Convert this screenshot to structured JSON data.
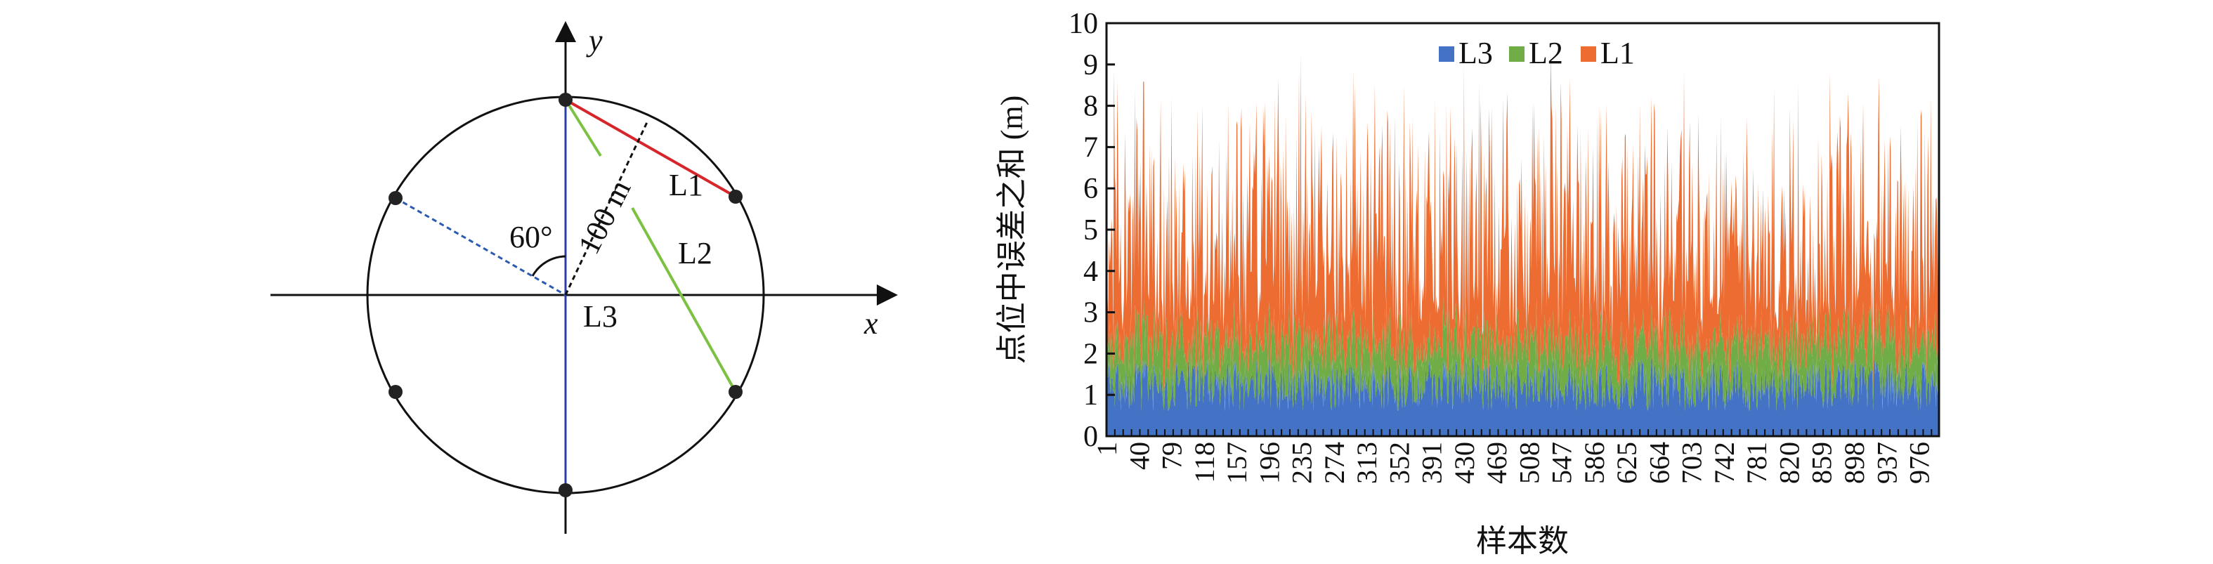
{
  "diagram": {
    "y_axis_label": "y",
    "x_axis_label": "x",
    "angle_label": "60°",
    "radius_label": "100 m",
    "line_labels": [
      "L1",
      "L2",
      "L3"
    ],
    "colors": {
      "L1": "#d6262b",
      "L2": "#7cc242",
      "L3": "#2a3fa8",
      "circle": "#111111",
      "dashed": "#2a5bb0"
    }
  },
  "chart_data": {
    "type": "area",
    "stacked": true,
    "xlabel": "样本数",
    "ylabel": "点位中误差之和 (m)",
    "ylim": [
      0,
      10
    ],
    "yticks": [
      "0",
      "1",
      "2",
      "3",
      "4",
      "5",
      "6",
      "7",
      "8",
      "9",
      "10"
    ],
    "xlim": [
      1,
      1000
    ],
    "xticks": [
      "1",
      "40",
      "79",
      "118",
      "157",
      "196",
      "235",
      "274",
      "313",
      "352",
      "391",
      "430",
      "469",
      "508",
      "547",
      "586",
      "625",
      "664",
      "703",
      "742",
      "781",
      "820",
      "859",
      "898",
      "937",
      "976"
    ],
    "legend_position": "top-center",
    "series": [
      {
        "name": "L3",
        "color": "#4472c4",
        "typical_range": [
          0.6,
          1.9
        ]
      },
      {
        "name": "L2",
        "color": "#70ad47",
        "typical_range": [
          0.4,
          1.6
        ]
      },
      {
        "name": "L1",
        "color": "#ed6c32",
        "typical_range": [
          0.6,
          6.0
        ]
      }
    ],
    "stack_top_typical": [
      2.5,
      6.0
    ],
    "stack_top_peak": 9.3,
    "n_samples": 1000
  }
}
